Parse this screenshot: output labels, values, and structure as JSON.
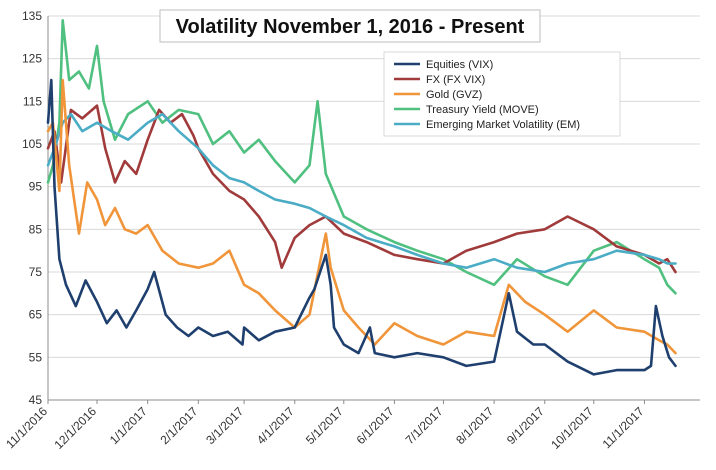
{
  "chart_data": {
    "type": "line",
    "title": "Volatility November 1, 2016 - Present",
    "xlabel": "",
    "ylabel": "",
    "ylim": [
      45,
      135
    ],
    "yticks": [
      45,
      55,
      65,
      75,
      85,
      95,
      105,
      115,
      125,
      135
    ],
    "x_tick_labels": [
      "11/1/2016",
      "12/1/2016",
      "1/1/2017",
      "2/1/2017",
      "3/1/2017",
      "4/1/2017",
      "5/1/2017",
      "6/1/2017",
      "7/1/2017",
      "8/1/2017",
      "9/1/2017",
      "10/1/2017",
      "11/1/2017"
    ],
    "grid": "horizontal",
    "legend_position": "top-right",
    "series": [
      {
        "name": "Equities (VIX)",
        "color": "#1f3f6e",
        "points": [
          [
            "11/1/2016",
            110
          ],
          [
            "11/3/2016",
            120
          ],
          [
            "11/5/2016",
            95
          ],
          [
            "11/8/2016",
            78
          ],
          [
            "11/12/2016",
            72
          ],
          [
            "11/18/2016",
            67
          ],
          [
            "11/24/2016",
            73
          ],
          [
            "12/1/2016",
            68
          ],
          [
            "12/7/2016",
            63
          ],
          [
            "12/13/2016",
            66
          ],
          [
            "12/19/2016",
            62
          ],
          [
            "12/25/2016",
            66
          ],
          [
            "1/1/2017",
            71
          ],
          [
            "1/5/2017",
            75
          ],
          [
            "1/12/2017",
            65
          ],
          [
            "1/19/2017",
            62
          ],
          [
            "1/26/2017",
            60
          ],
          [
            "2/1/2017",
            62
          ],
          [
            "2/10/2017",
            60
          ],
          [
            "2/19/2017",
            61
          ],
          [
            "2/28/2017",
            58
          ],
          [
            "3/1/2017",
            62
          ],
          [
            "3/10/2017",
            59
          ],
          [
            "3/20/2017",
            61
          ],
          [
            "4/1/2017",
            62
          ],
          [
            "4/10/2017",
            69
          ],
          [
            "4/13/2017",
            71
          ],
          [
            "4/20/2017",
            79
          ],
          [
            "4/23/2017",
            72
          ],
          [
            "4/25/2017",
            62
          ],
          [
            "5/1/2017",
            58
          ],
          [
            "5/10/2017",
            56
          ],
          [
            "5/17/2017",
            62
          ],
          [
            "5/20/2017",
            56
          ],
          [
            "6/1/2017",
            55
          ],
          [
            "6/15/2017",
            56
          ],
          [
            "7/1/2017",
            55
          ],
          [
            "7/15/2017",
            53
          ],
          [
            "8/1/2017",
            54
          ],
          [
            "8/10/2017",
            70
          ],
          [
            "8/15/2017",
            61
          ],
          [
            "8/25/2017",
            58
          ],
          [
            "9/1/2017",
            58
          ],
          [
            "9/15/2017",
            54
          ],
          [
            "10/1/2017",
            51
          ],
          [
            "10/15/2017",
            52
          ],
          [
            "11/1/2017",
            52
          ],
          [
            "11/5/2017",
            53
          ],
          [
            "11/8/2017",
            67
          ],
          [
            "11/12/2017",
            60
          ],
          [
            "11/16/2017",
            55
          ],
          [
            "11/20/2017",
            53
          ]
        ]
      },
      {
        "name": "FX (FX VIX)",
        "color": "#a13b3b",
        "points": [
          [
            "11/1/2016",
            104
          ],
          [
            "11/5/2016",
            108
          ],
          [
            "11/9/2016",
            96
          ],
          [
            "11/15/2016",
            113
          ],
          [
            "11/22/2016",
            111
          ],
          [
            "12/1/2016",
            114
          ],
          [
            "12/6/2016",
            104
          ],
          [
            "12/12/2016",
            96
          ],
          [
            "12/18/2016",
            101
          ],
          [
            "12/25/2016",
            98
          ],
          [
            "1/1/2017",
            106
          ],
          [
            "1/8/2017",
            113
          ],
          [
            "1/15/2017",
            110
          ],
          [
            "1/22/2017",
            112
          ],
          [
            "1/29/2017",
            107
          ],
          [
            "2/1/2017",
            104
          ],
          [
            "2/10/2017",
            98
          ],
          [
            "2/20/2017",
            94
          ],
          [
            "3/1/2017",
            92
          ],
          [
            "3/10/2017",
            88
          ],
          [
            "3/20/2017",
            82
          ],
          [
            "3/24/2017",
            76
          ],
          [
            "4/1/2017",
            83
          ],
          [
            "4/10/2017",
            86
          ],
          [
            "4/20/2017",
            88
          ],
          [
            "5/1/2017",
            84
          ],
          [
            "5/15/2017",
            82
          ],
          [
            "6/1/2017",
            79
          ],
          [
            "6/15/2017",
            78
          ],
          [
            "7/1/2017",
            77
          ],
          [
            "7/15/2017",
            80
          ],
          [
            "8/1/2017",
            82
          ],
          [
            "8/15/2017",
            84
          ],
          [
            "9/1/2017",
            85
          ],
          [
            "9/15/2017",
            88
          ],
          [
            "10/1/2017",
            85
          ],
          [
            "10/15/2017",
            81
          ],
          [
            "11/1/2017",
            79
          ],
          [
            "11/10/2017",
            77
          ],
          [
            "11/15/2017",
            78
          ],
          [
            "11/20/2017",
            75
          ]
        ]
      },
      {
        "name": "Gold (GVZ)",
        "color": "#f0953a",
        "points": [
          [
            "11/1/2016",
            108
          ],
          [
            "11/4/2016",
            110
          ],
          [
            "11/8/2016",
            94
          ],
          [
            "11/10/2016",
            120
          ],
          [
            "11/14/2016",
            100
          ],
          [
            "11/20/2016",
            84
          ],
          [
            "11/25/2016",
            96
          ],
          [
            "12/1/2016",
            92
          ],
          [
            "12/6/2016",
            86
          ],
          [
            "12/12/2016",
            90
          ],
          [
            "12/18/2016",
            85
          ],
          [
            "12/25/2016",
            84
          ],
          [
            "1/1/2017",
            86
          ],
          [
            "1/10/2017",
            80
          ],
          [
            "1/20/2017",
            77
          ],
          [
            "2/1/2017",
            76
          ],
          [
            "2/10/2017",
            77
          ],
          [
            "2/20/2017",
            80
          ],
          [
            "3/1/2017",
            72
          ],
          [
            "3/10/2017",
            70
          ],
          [
            "3/20/2017",
            66
          ],
          [
            "4/1/2017",
            62
          ],
          [
            "4/10/2017",
            65
          ],
          [
            "4/20/2017",
            84
          ],
          [
            "4/23/2017",
            76
          ],
          [
            "5/1/2017",
            66
          ],
          [
            "5/10/2017",
            62
          ],
          [
            "5/20/2017",
            58
          ],
          [
            "6/1/2017",
            63
          ],
          [
            "6/15/2017",
            60
          ],
          [
            "7/1/2017",
            58
          ],
          [
            "7/15/2017",
            61
          ],
          [
            "8/1/2017",
            60
          ],
          [
            "8/10/2017",
            72
          ],
          [
            "8/20/2017",
            68
          ],
          [
            "9/1/2017",
            65
          ],
          [
            "9/15/2017",
            61
          ],
          [
            "10/1/2017",
            66
          ],
          [
            "10/15/2017",
            62
          ],
          [
            "11/1/2017",
            61
          ],
          [
            "11/10/2017",
            59
          ],
          [
            "11/15/2017",
            58
          ],
          [
            "11/20/2017",
            56
          ]
        ]
      },
      {
        "name": "Treasury Yield (MOVE)",
        "color": "#4fc07f",
        "points": [
          [
            "11/1/2016",
            96
          ],
          [
            "11/4/2016",
            100
          ],
          [
            "11/8/2016",
            110
          ],
          [
            "11/10/2016",
            134
          ],
          [
            "11/14/2016",
            120
          ],
          [
            "11/20/2016",
            122
          ],
          [
            "11/26/2016",
            118
          ],
          [
            "12/1/2016",
            128
          ],
          [
            "12/5/2016",
            115
          ],
          [
            "12/12/2016",
            106
          ],
          [
            "12/20/2016",
            112
          ],
          [
            "1/1/2017",
            115
          ],
          [
            "1/10/2017",
            110
          ],
          [
            "1/20/2017",
            113
          ],
          [
            "2/1/2017",
            112
          ],
          [
            "2/10/2017",
            105
          ],
          [
            "2/20/2017",
            108
          ],
          [
            "3/1/2017",
            103
          ],
          [
            "3/10/2017",
            106
          ],
          [
            "3/20/2017",
            101
          ],
          [
            "4/1/2017",
            96
          ],
          [
            "4/10/2017",
            100
          ],
          [
            "4/15/2017",
            115
          ],
          [
            "4/20/2017",
            98
          ],
          [
            "5/1/2017",
            88
          ],
          [
            "5/15/2017",
            85
          ],
          [
            "6/1/2017",
            82
          ],
          [
            "6/15/2017",
            80
          ],
          [
            "7/1/2017",
            78
          ],
          [
            "7/15/2017",
            75
          ],
          [
            "8/1/2017",
            72
          ],
          [
            "8/15/2017",
            78
          ],
          [
            "9/1/2017",
            74
          ],
          [
            "9/15/2017",
            72
          ],
          [
            "10/1/2017",
            80
          ],
          [
            "10/15/2017",
            82
          ],
          [
            "11/1/2017",
            78
          ],
          [
            "11/10/2017",
            76
          ],
          [
            "11/15/2017",
            72
          ],
          [
            "11/20/2017",
            70
          ]
        ]
      },
      {
        "name": "Emerging Market Volatility (EM)",
        "color": "#4bacc6",
        "points": [
          [
            "11/1/2016",
            100
          ],
          [
            "11/5/2016",
            104
          ],
          [
            "11/10/2016",
            110
          ],
          [
            "11/15/2016",
            112
          ],
          [
            "11/22/2016",
            108
          ],
          [
            "12/1/2016",
            110
          ],
          [
            "12/10/2016",
            108
          ],
          [
            "12/20/2016",
            106
          ],
          [
            "1/1/2017",
            110
          ],
          [
            "1/10/2017",
            112
          ],
          [
            "1/20/2017",
            108
          ],
          [
            "2/1/2017",
            104
          ],
          [
            "2/10/2017",
            100
          ],
          [
            "2/20/2017",
            97
          ],
          [
            "3/1/2017",
            96
          ],
          [
            "3/10/2017",
            94
          ],
          [
            "3/20/2017",
            92
          ],
          [
            "4/1/2017",
            91
          ],
          [
            "4/10/2017",
            90
          ],
          [
            "4/20/2017",
            88
          ],
          [
            "5/1/2017",
            86
          ],
          [
            "5/15/2017",
            83
          ],
          [
            "6/1/2017",
            81
          ],
          [
            "6/15/2017",
            79
          ],
          [
            "7/1/2017",
            77
          ],
          [
            "7/15/2017",
            76
          ],
          [
            "8/1/2017",
            78
          ],
          [
            "8/15/2017",
            76
          ],
          [
            "9/1/2017",
            75
          ],
          [
            "9/15/2017",
            77
          ],
          [
            "10/1/2017",
            78
          ],
          [
            "10/15/2017",
            80
          ],
          [
            "11/1/2017",
            79
          ],
          [
            "11/10/2017",
            78
          ],
          [
            "11/15/2017",
            77
          ],
          [
            "11/20/2017",
            77
          ]
        ]
      }
    ]
  }
}
